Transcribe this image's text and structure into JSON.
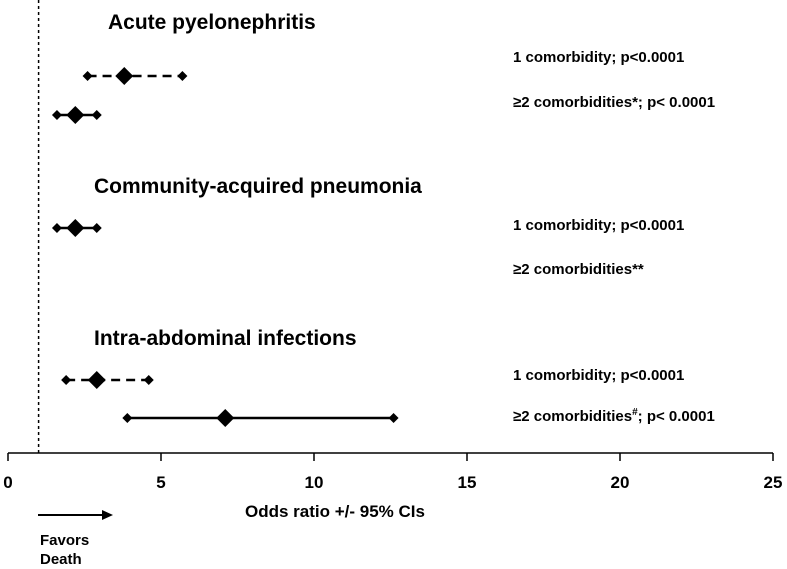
{
  "chart_data": {
    "type": "forest",
    "xlabel": "Odds ratio +/- 95% CIs",
    "xlim": [
      0,
      25
    ],
    "xticks": [
      "0",
      "5",
      "10",
      "15",
      "20",
      "25"
    ],
    "reference_line": 1,
    "reference_line_style": "dotted",
    "groups": [
      {
        "title": "Acute pyelonephritis",
        "rows": [
          {
            "label": "1 comorbidity;  p<0.0001",
            "or": 3.8,
            "lower": 2.6,
            "upper": 5.7,
            "line_style": "dashed"
          },
          {
            "label": "≥2 comorbidities*;  p< 0.0001",
            "or": 2.2,
            "lower": 1.6,
            "upper": 2.9,
            "line_style": "solid"
          }
        ]
      },
      {
        "title": "Community-acquired pneumonia",
        "rows": [
          {
            "label": "1 comorbidity;  p<0.0001",
            "or": 2.2,
            "lower": 1.6,
            "upper": 2.9,
            "line_style": "solid"
          },
          {
            "label": "≥2 comorbidities**",
            "or": null,
            "lower": null,
            "upper": null,
            "line_style": "none"
          }
        ]
      },
      {
        "title": "Intra-abdominal infections",
        "rows": [
          {
            "label": "1 comorbidity;  p<0.0001",
            "or": 2.9,
            "lower": 1.9,
            "upper": 4.6,
            "line_style": "dashed"
          },
          {
            "label": "≥2 comorbidities",
            "label_sup": "#",
            "label_tail": ";  p< 0.0001",
            "or": 7.1,
            "lower": 3.9,
            "upper": 12.6,
            "line_style": "solid"
          }
        ]
      }
    ],
    "annotation": {
      "arrow_direction": "right",
      "line1": "Favors",
      "line2": "Death"
    }
  }
}
